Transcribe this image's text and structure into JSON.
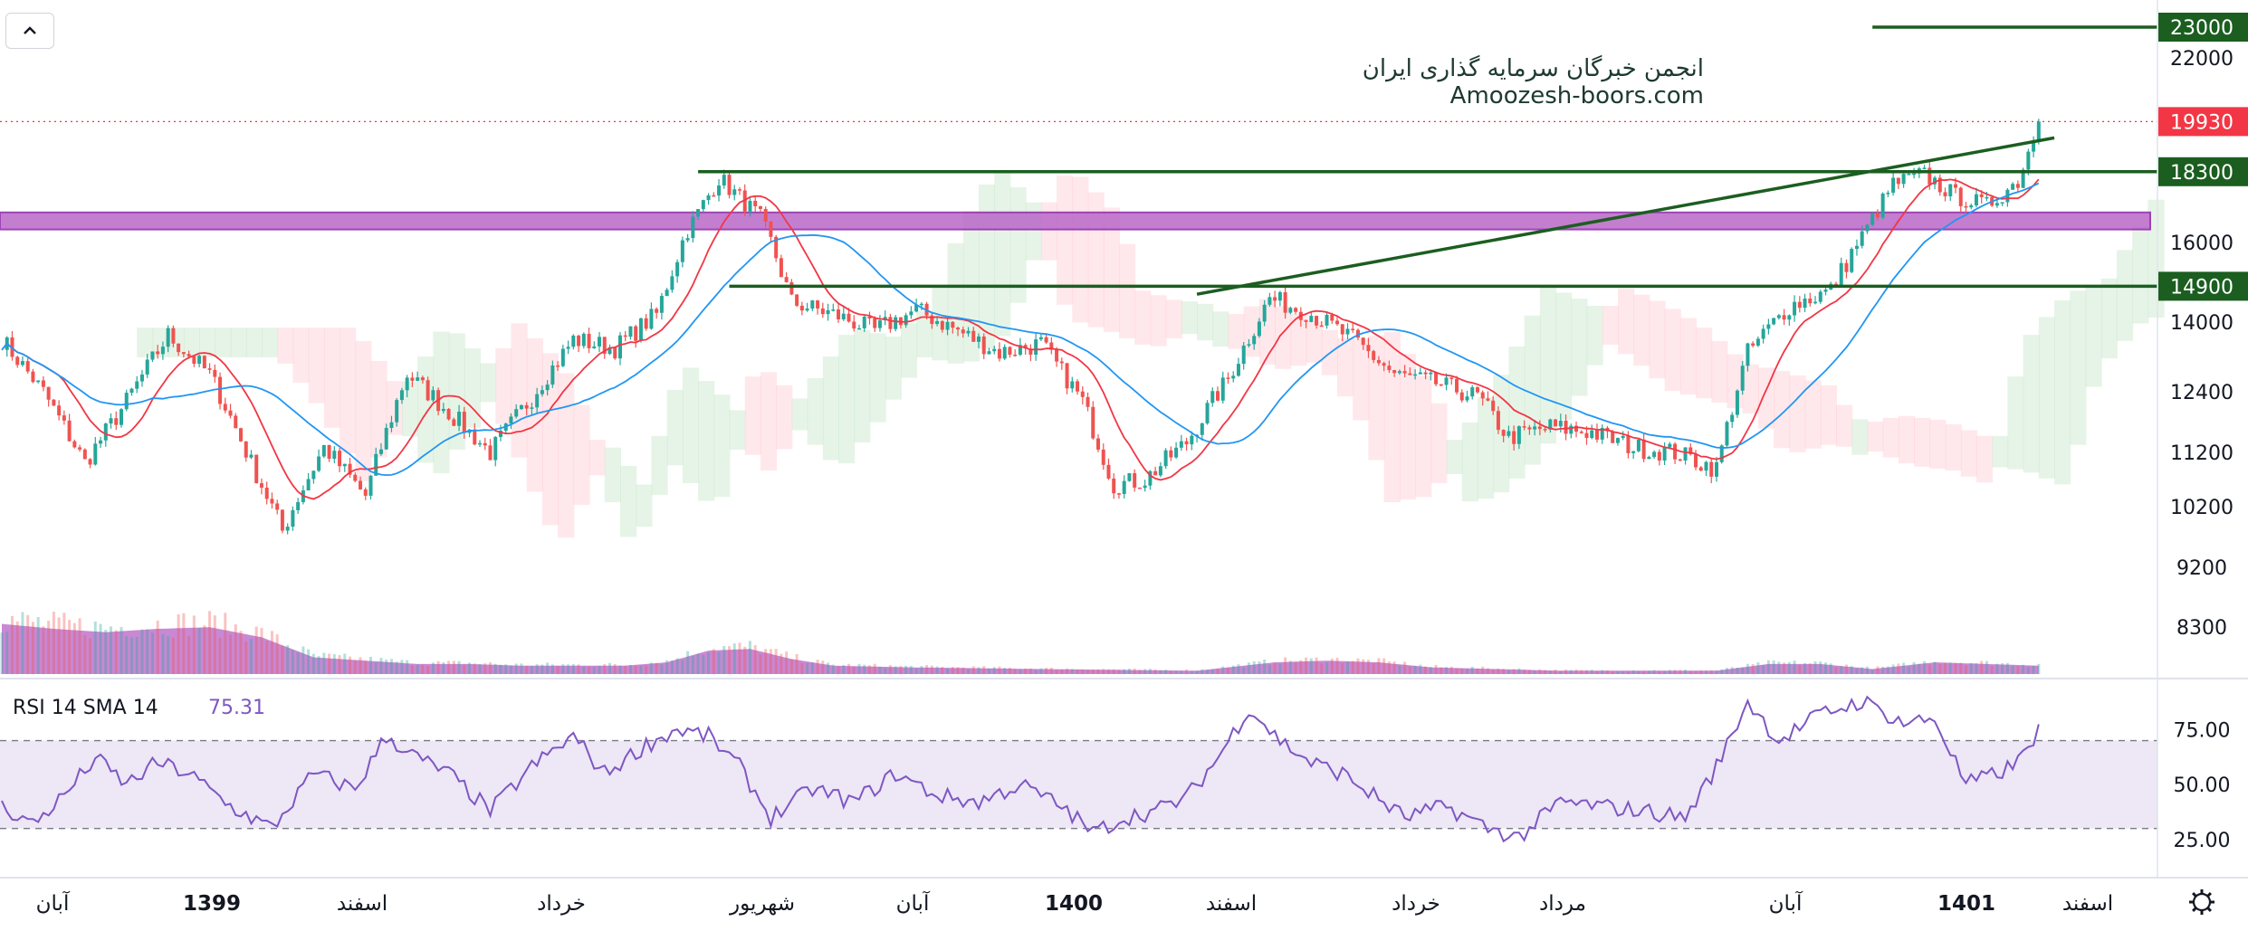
{
  "watermark": {
    "line1": "انجمن خبرگان سرمایه گذاری ایران",
    "line2": "Amoozesh-boors.com"
  },
  "colors": {
    "candle_up": "#26a69a",
    "candle_down": "#ef5350",
    "ma_fast": "#f23645",
    "ma_slow": "#2196f3",
    "level_line": "#1b5e20",
    "zone": "#ba68c8",
    "volume": "#9c27b0",
    "rsi_line": "#7e57c2",
    "rsi_band": "#ede7f6",
    "last_price": "#f23645"
  },
  "chart_data": {
    "type": "candlestick",
    "x_ticks": [
      "آبان",
      "1399",
      "اسفند",
      "خرداد",
      "شهریور",
      "آبان",
      "1400",
      "اسفند",
      "خرداد",
      "مرداد",
      "آبان",
      "1401",
      "اسفند"
    ],
    "y_ticks": [
      22000,
      16000,
      14000,
      12400,
      11200,
      10200,
      9200,
      8300
    ],
    "y_range": [
      7800,
      23500
    ],
    "price_levels": [
      {
        "label": "23000",
        "value": 23000
      },
      {
        "label": "18300",
        "value": 18300
      },
      {
        "label": "14900",
        "value": 14900
      }
    ],
    "last_price": {
      "label": "19930",
      "value": 19930
    },
    "resistance_zone": [
      16600,
      16800
    ],
    "trendline": {
      "from": {
        "bar": 230,
        "value": 14700
      },
      "to": {
        "bar": 395,
        "value": 19400
      }
    },
    "price_anchors": [
      [
        0,
        13600
      ],
      [
        8,
        12400
      ],
      [
        16,
        11000
      ],
      [
        24,
        12200
      ],
      [
        32,
        13700
      ],
      [
        40,
        12800
      ],
      [
        48,
        11000
      ],
      [
        54,
        9800
      ],
      [
        62,
        11300
      ],
      [
        70,
        10400
      ],
      [
        78,
        12800
      ],
      [
        86,
        12000
      ],
      [
        94,
        11200
      ],
      [
        102,
        12300
      ],
      [
        110,
        13600
      ],
      [
        118,
        13400
      ],
      [
        126,
        14200
      ],
      [
        132,
        16400
      ],
      [
        138,
        18100
      ],
      [
        146,
        16800
      ],
      [
        152,
        14500
      ],
      [
        160,
        14200
      ],
      [
        168,
        13800
      ],
      [
        176,
        14300
      ],
      [
        184,
        13800
      ],
      [
        192,
        13300
      ],
      [
        200,
        13500
      ],
      [
        208,
        12200
      ],
      [
        214,
        10600
      ],
      [
        220,
        10700
      ],
      [
        228,
        11400
      ],
      [
        236,
        12700
      ],
      [
        244,
        14600
      ],
      [
        252,
        14200
      ],
      [
        260,
        13600
      ],
      [
        268,
        12800
      ],
      [
        276,
        12600
      ],
      [
        284,
        12300
      ],
      [
        290,
        11500
      ],
      [
        298,
        11700
      ],
      [
        306,
        11600
      ],
      [
        314,
        11300
      ],
      [
        322,
        11200
      ],
      [
        330,
        10900
      ],
      [
        336,
        13300
      ],
      [
        344,
        14400
      ],
      [
        352,
        14800
      ],
      [
        358,
        16200
      ],
      [
        364,
        17900
      ],
      [
        370,
        18200
      ],
      [
        376,
        17500
      ],
      [
        382,
        17200
      ],
      [
        388,
        18000
      ],
      [
        392,
        19930
      ]
    ],
    "volume_profile": [
      [
        0,
        0.3
      ],
      [
        10,
        0.27
      ],
      [
        20,
        0.25
      ],
      [
        30,
        0.27
      ],
      [
        40,
        0.28
      ],
      [
        50,
        0.22
      ],
      [
        60,
        0.1
      ],
      [
        70,
        0.08
      ],
      [
        80,
        0.06
      ],
      [
        90,
        0.06
      ],
      [
        100,
        0.05
      ],
      [
        110,
        0.05
      ],
      [
        120,
        0.05
      ],
      [
        128,
        0.07
      ],
      [
        136,
        0.14
      ],
      [
        144,
        0.15
      ],
      [
        152,
        0.09
      ],
      [
        160,
        0.05
      ],
      [
        175,
        0.04
      ],
      [
        200,
        0.03
      ],
      [
        230,
        0.02
      ],
      [
        245,
        0.07
      ],
      [
        255,
        0.08
      ],
      [
        265,
        0.07
      ],
      [
        275,
        0.04
      ],
      [
        300,
        0.02
      ],
      [
        330,
        0.02
      ],
      [
        340,
        0.06
      ],
      [
        350,
        0.06
      ],
      [
        360,
        0.03
      ],
      [
        372,
        0.07
      ],
      [
        382,
        0.06
      ],
      [
        392,
        0.05
      ]
    ],
    "rsi": {
      "label": "RSI 14 SMA 14",
      "value": "75.31",
      "ticks": [
        75,
        50,
        25
      ],
      "upper": 70,
      "lower": 30,
      "anchors": [
        [
          0,
          40
        ],
        [
          6,
          32
        ],
        [
          12,
          45
        ],
        [
          18,
          62
        ],
        [
          24,
          50
        ],
        [
          30,
          60
        ],
        [
          36,
          55
        ],
        [
          44,
          40
        ],
        [
          52,
          30
        ],
        [
          60,
          55
        ],
        [
          68,
          48
        ],
        [
          74,
          72
        ],
        [
          80,
          62
        ],
        [
          86,
          55
        ],
        [
          94,
          38
        ],
        [
          102,
          58
        ],
        [
          110,
          72
        ],
        [
          116,
          55
        ],
        [
          124,
          68
        ],
        [
          130,
          75
        ],
        [
          136,
          72
        ],
        [
          142,
          58
        ],
        [
          148,
          35
        ],
        [
          156,
          48
        ],
        [
          164,
          42
        ],
        [
          172,
          55
        ],
        [
          180,
          45
        ],
        [
          188,
          42
        ],
        [
          196,
          50
        ],
        [
          204,
          40
        ],
        [
          210,
          28
        ],
        [
          216,
          35
        ],
        [
          222,
          38
        ],
        [
          228,
          44
        ],
        [
          234,
          62
        ],
        [
          240,
          85
        ],
        [
          246,
          70
        ],
        [
          252,
          60
        ],
        [
          258,
          55
        ],
        [
          264,
          45
        ],
        [
          270,
          35
        ],
        [
          278,
          40
        ],
        [
          286,
          30
        ],
        [
          292,
          26
        ],
        [
          300,
          42
        ],
        [
          308,
          40
        ],
        [
          316,
          38
        ],
        [
          324,
          35
        ],
        [
          330,
          58
        ],
        [
          336,
          88
        ],
        [
          342,
          70
        ],
        [
          350,
          82
        ],
        [
          358,
          88
        ],
        [
          366,
          78
        ],
        [
          372,
          80
        ],
        [
          378,
          50
        ],
        [
          384,
          55
        ],
        [
          388,
          60
        ],
        [
          392,
          75
        ]
      ]
    }
  }
}
